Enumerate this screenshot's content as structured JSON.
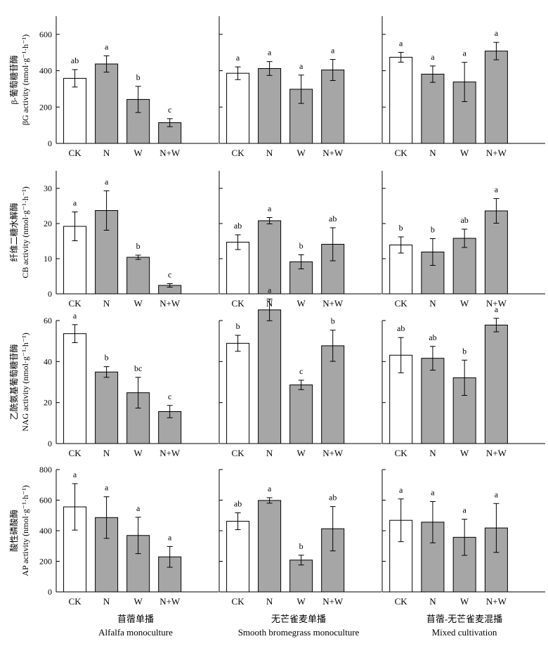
{
  "columns": [
    {
      "label_zh": "苜蓿单播",
      "label_en": "Alfalfa monoculture"
    },
    {
      "label_zh": "无芒雀麦单播",
      "label_en": "Smooth bromegrass monoculture"
    },
    {
      "label_zh": "苜蓿-无芒雀麦混播",
      "label_en": "Mixed cultivation"
    }
  ],
  "colors": {
    "control_fill": "#ffffff",
    "treatment_fill": "#a6a6a6",
    "stroke": "#000000"
  },
  "chart_data": [
    {
      "type": "bar",
      "row": 0,
      "ylabel_zh": "β-葡萄糖苷酶",
      "ylabel_en": "βG activity (nmol·g⁻¹·h⁻¹)",
      "ylim": [
        0,
        700
      ],
      "yticks": [
        0,
        200,
        400,
        600
      ],
      "categories": [
        "CK",
        "N",
        "W",
        "N+W"
      ],
      "panels": [
        {
          "values": [
            358,
            437,
            242,
            114
          ],
          "errors": [
            48,
            45,
            72,
            22
          ],
          "letters": [
            "ab",
            "a",
            "b",
            "c"
          ]
        },
        {
          "values": [
            386,
            412,
            298,
            404
          ],
          "errors": [
            35,
            38,
            78,
            58
          ],
          "letters": [
            "a",
            "a",
            "a",
            "a"
          ]
        },
        {
          "values": [
            474,
            381,
            338,
            508
          ],
          "errors": [
            27,
            45,
            108,
            48
          ],
          "letters": [
            "a",
            "a",
            "a",
            "a"
          ]
        }
      ]
    },
    {
      "type": "bar",
      "row": 1,
      "ylabel_zh": "纤维二糖水解酶",
      "ylabel_en": "CB activity (nmol·g⁻¹·h⁻¹)",
      "ylim": [
        0,
        35
      ],
      "yticks": [
        0,
        10,
        20,
        30
      ],
      "categories": [
        "CK",
        "N",
        "W",
        "N+W"
      ],
      "panels": [
        {
          "values": [
            19.2,
            23.7,
            10.4,
            2.4
          ],
          "errors": [
            4.1,
            5.6,
            0.6,
            0.5
          ],
          "letters": [
            "a",
            "a",
            "b",
            "c"
          ]
        },
        {
          "values": [
            14.7,
            20.8,
            9.1,
            14.1
          ],
          "errors": [
            2.1,
            0.9,
            2.0,
            4.7
          ],
          "letters": [
            "ab",
            "a",
            "b",
            "ab"
          ]
        },
        {
          "values": [
            13.9,
            11.9,
            15.8,
            23.6
          ],
          "errors": [
            2.3,
            3.8,
            2.6,
            3.5
          ],
          "letters": [
            "b",
            "b",
            "ab",
            "a"
          ]
        }
      ]
    },
    {
      "type": "bar",
      "row": 2,
      "ylabel_zh": "乙酰氨基葡萄糖苷酶",
      "ylabel_en": "NAG activity (nmol·g⁻¹·h⁻¹)",
      "ylim": [
        0,
        60
      ],
      "yticks": [
        0,
        20,
        40,
        60
      ],
      "categories": [
        "CK",
        "N",
        "W",
        "N+W"
      ],
      "panels": [
        {
          "values": [
            53.6,
            34.9,
            24.8,
            15.6
          ],
          "errors": [
            4.4,
            2.6,
            7.5,
            3.0
          ],
          "letters": [
            "a",
            "b",
            "bc",
            "c"
          ]
        },
        {
          "values": [
            48.9,
            65.2,
            28.6,
            47.7
          ],
          "errors": [
            3.9,
            5.3,
            2.3,
            7.6
          ],
          "letters": [
            "b",
            "a",
            "c",
            "b"
          ]
        },
        {
          "values": [
            43.1,
            41.6,
            32.1,
            57.8
          ],
          "errors": [
            8.6,
            5.8,
            8.6,
            3.3
          ],
          "letters": [
            "ab",
            "ab",
            "b",
            "a"
          ]
        }
      ]
    },
    {
      "type": "bar",
      "row": 3,
      "ylabel_zh": "酸性磷酸酶",
      "ylabel_en": "AP activity (nmol·g⁻¹·h⁻¹)",
      "ylim": [
        0,
        800
      ],
      "yticks": [
        0,
        200,
        400,
        600,
        800
      ],
      "categories": [
        "CK",
        "N",
        "W",
        "N+W"
      ],
      "panels": [
        {
          "values": [
            556,
            486,
            369,
            229
          ],
          "errors": [
            152,
            136,
            119,
            68
          ],
          "letters": [
            "a",
            "a",
            "a",
            "a"
          ]
        },
        {
          "values": [
            462,
            598,
            208,
            413
          ],
          "errors": [
            55,
            18,
            32,
            145
          ],
          "letters": [
            "ab",
            "a",
            "b",
            "ab"
          ]
        },
        {
          "values": [
            468,
            456,
            357,
            418
          ],
          "errors": [
            140,
            135,
            118,
            160
          ],
          "letters": [
            "a",
            "a",
            "a",
            "a"
          ]
        }
      ]
    }
  ]
}
